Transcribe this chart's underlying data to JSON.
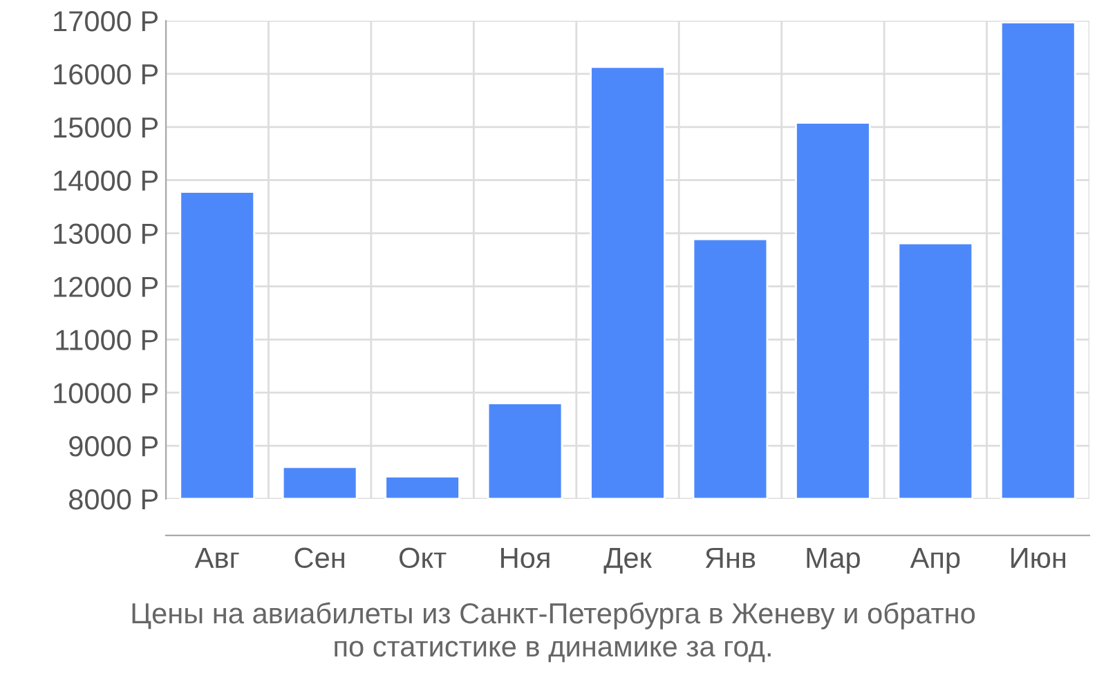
{
  "chart_data": {
    "type": "bar",
    "categories": [
      "Авг",
      "Сен",
      "Окт",
      "Ноя",
      "Дек",
      "Янв",
      "Мар",
      "Апр",
      "Июн"
    ],
    "values": [
      13780,
      8600,
      8420,
      9800,
      16130,
      12890,
      15080,
      12810,
      16970
    ],
    "color": "#4d88fb",
    "ylim": [
      8000,
      17000
    ],
    "yticks": [
      {
        "value": 8000,
        "label": "8000 Р"
      },
      {
        "value": 9000,
        "label": "9000 Р"
      },
      {
        "value": 10000,
        "label": "10000 Р"
      },
      {
        "value": 11000,
        "label": "11000 Р"
      },
      {
        "value": 12000,
        "label": "12000 Р"
      },
      {
        "value": 13000,
        "label": "13000 Р"
      },
      {
        "value": 14000,
        "label": "14000 Р"
      },
      {
        "value": 15000,
        "label": "15000 Р"
      },
      {
        "value": 16000,
        "label": "16000 Р"
      },
      {
        "value": 17000,
        "label": "17000 Р"
      }
    ],
    "grid": true,
    "annotations": [
      "Цены на авиабилеты из Санкт-Петербурга в Женеву и обратно\nпо статистике в динамике за год."
    ]
  }
}
